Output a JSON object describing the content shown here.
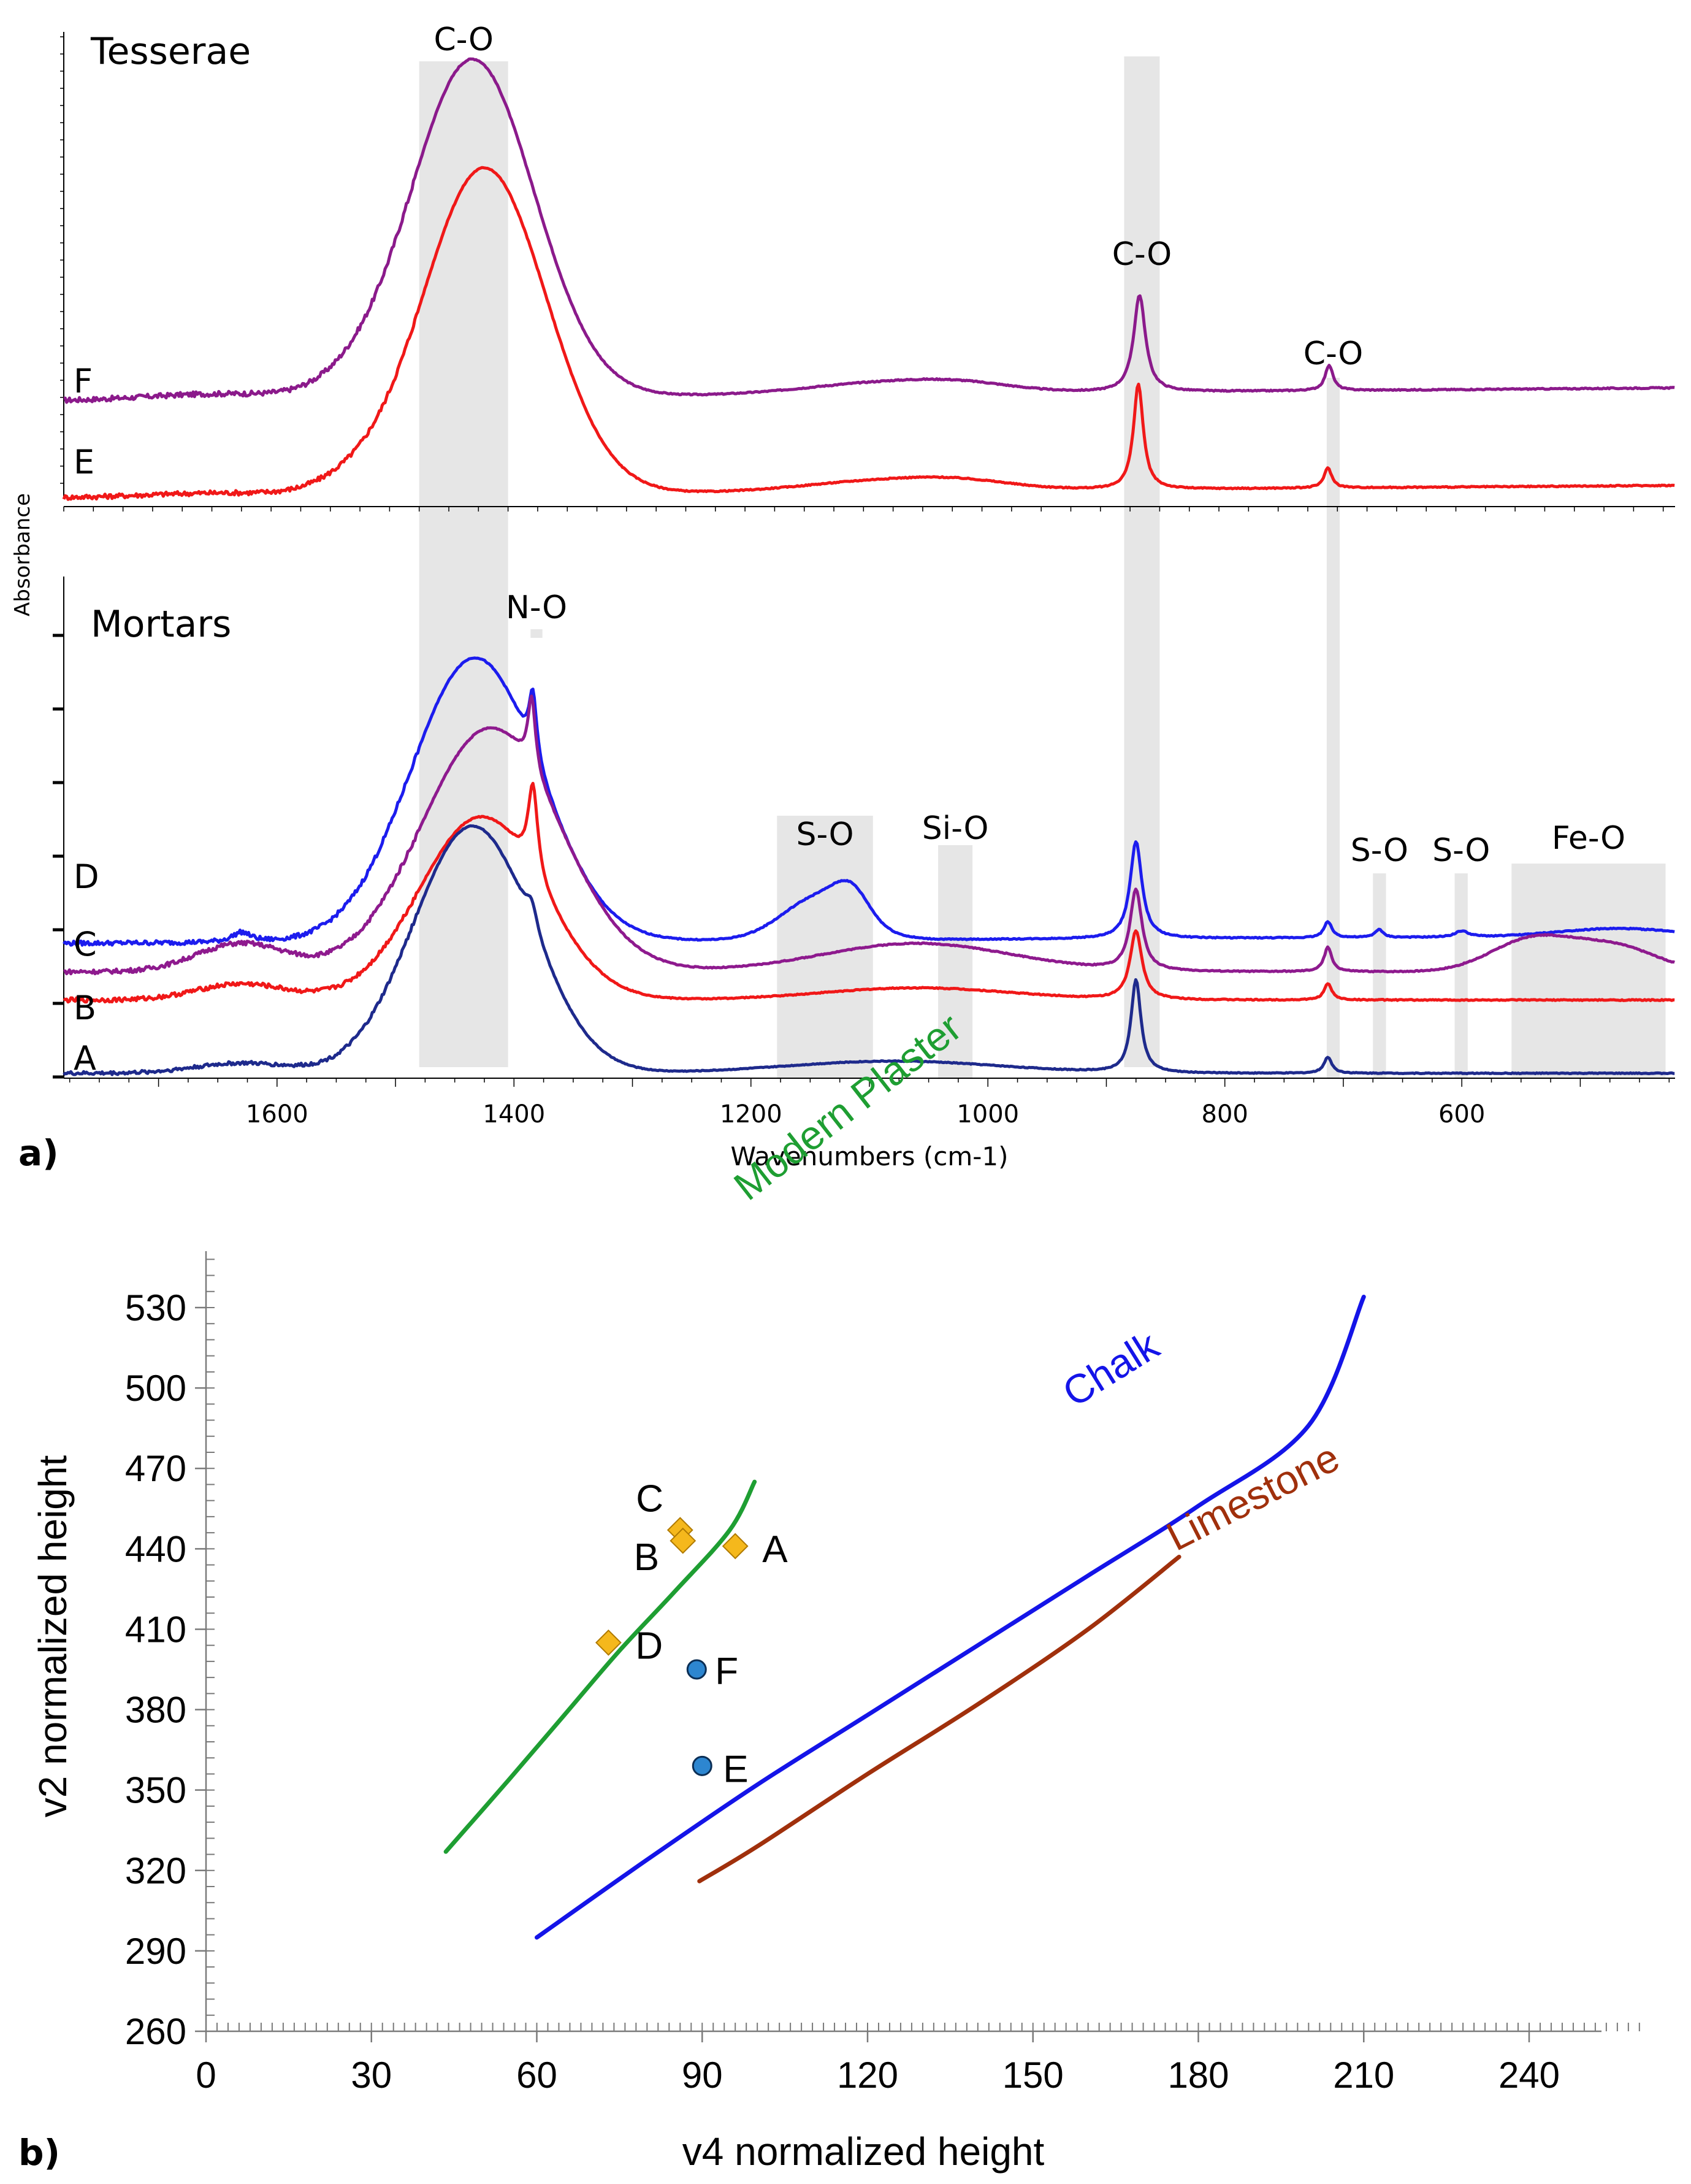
{
  "chart_data": [
    {
      "panel": "a)",
      "type": "line",
      "xlabel": "Wavenumbers (cm-1)",
      "ylabel": "Absorbance",
      "xlim": [
        1780,
        420
      ],
      "x_ticks": [
        1600,
        1400,
        1200,
        1000,
        800,
        600
      ],
      "x_tick_labels": [
        "1600",
        "1400",
        "1200",
        "1000",
        "800",
        "600"
      ],
      "groups": [
        {
          "title": "Tesserae",
          "series_ids": [
            "F",
            "E"
          ]
        },
        {
          "title": "Mortars",
          "series_ids": [
            "D",
            "C",
            "B",
            "A"
          ]
        }
      ],
      "bands": [
        {
          "label": "C-O",
          "from": 1480,
          "to": 1405
        },
        {
          "label": "N-O",
          "from": 1386,
          "to": 1376
        },
        {
          "label": "C-O",
          "from": 885,
          "to": 855
        },
        {
          "label": "C-O",
          "from": 714,
          "to": 703
        },
        {
          "label": "S-O",
          "from": 1178,
          "to": 1097
        },
        {
          "label": "Si-O",
          "from": 1042,
          "to": 1013
        },
        {
          "label": "S-O",
          "from": 675,
          "to": 664
        },
        {
          "label": "S-O",
          "from": 606,
          "to": 595
        },
        {
          "label": "Fe-O",
          "from": 558,
          "to": 428
        }
      ],
      "series": [
        {
          "id": "F",
          "name": "F",
          "color": "#8B1A8B",
          "baseline": 0.03,
          "noise": 0.006,
          "slope": -0.02,
          "peaks": [
            [
              1435,
              52,
              0.89
            ],
            [
              1540,
              30,
              0.02
            ],
            [
              1650,
              60,
              0.015
            ],
            [
              1080,
              70,
              0.032
            ],
            [
              1020,
              40,
              0.012
            ],
            [
              872,
              6,
              0.255
            ],
            [
              712,
              4,
              0.067
            ]
          ]
        },
        {
          "id": "E",
          "name": "E",
          "color": "#F01818",
          "baseline": 0.0,
          "noise": 0.006,
          "slope": -0.02,
          "peaks": [
            [
              1425,
              52,
              0.9
            ],
            [
              1540,
              30,
              0.025
            ],
            [
              1650,
              60,
              0.01
            ],
            [
              1080,
              70,
              0.032
            ],
            [
              1020,
              40,
              0.012
            ],
            [
              873,
              5,
              0.29
            ],
            [
              713,
              4,
              0.055
            ]
          ]
        },
        {
          "id": "D",
          "name": "D",
          "color": "#1C1CEE",
          "baseline": 0.24,
          "noise": 0.005,
          "slope": -0.01,
          "peaks": [
            [
              1433,
              54,
              0.7
            ],
            [
              1384,
              4,
              0.16
            ],
            [
              1630,
              10,
              0.025
            ],
            [
              1140,
              32,
              0.11
            ],
            [
              1115,
              14,
              0.06
            ],
            [
              875,
              6,
              0.24
            ],
            [
              713,
              4,
              0.04
            ],
            [
              670,
              4,
              0.02
            ],
            [
              600,
              7,
              0.015
            ],
            [
              470,
              50,
              0.02
            ]
          ]
        },
        {
          "id": "C",
          "name": "C",
          "color": "#8E1A8E",
          "baseline": 0.16,
          "noise": 0.005,
          "slope": 0.0,
          "peaks": [
            [
              1420,
              58,
              0.6
            ],
            [
              1385,
              4,
              0.18
            ],
            [
              1630,
              38,
              0.07
            ],
            [
              1060,
              80,
              0.07
            ],
            [
              875,
              6,
              0.2
            ],
            [
              713,
              4,
              0.06
            ],
            [
              540,
              35,
              0.08
            ],
            [
              470,
              35,
              0.06
            ]
          ]
        },
        {
          "id": "B",
          "name": "B",
          "color": "#F01818",
          "baseline": 0.09,
          "noise": 0.005,
          "slope": 0.0,
          "peaks": [
            [
              1428,
              52,
              0.45
            ],
            [
              1384,
              5,
              0.22
            ],
            [
              1630,
              38,
              0.04
            ],
            [
              1060,
              80,
              0.03
            ],
            [
              875,
              6,
              0.17
            ],
            [
              713,
              4,
              0.04
            ]
          ]
        },
        {
          "id": "A",
          "name": "A",
          "color": "#1E2A8C",
          "baseline": 0.0,
          "noise": 0.004,
          "slope": 0.0,
          "peaks": [
            [
              1435,
              50,
              0.61
            ],
            [
              1385,
              6,
              0.06
            ],
            [
              1630,
              40,
              0.025
            ],
            [
              1080,
              90,
              0.03
            ],
            [
              875,
              5,
              0.23
            ],
            [
              713,
              4,
              0.04
            ]
          ]
        }
      ]
    },
    {
      "panel": "b)",
      "type": "scatter",
      "xlabel": "v4 normalized height",
      "ylabel": "v2 normalized height",
      "xlim": [
        0,
        260
      ],
      "ylim": [
        260,
        550
      ],
      "x_ticks": [
        0,
        30,
        60,
        90,
        120,
        150,
        180,
        210,
        240
      ],
      "y_ticks": [
        260,
        290,
        320,
        350,
        380,
        410,
        440,
        470,
        500,
        530
      ],
      "curves": [
        {
          "name": "Modern Plaster",
          "color": "#1E9E32",
          "x": [
            43.5,
            55,
            65,
            75,
            85,
            95,
            99.5
          ],
          "y": [
            327,
            354,
            378,
            402,
            424,
            447,
            465
          ]
        },
        {
          "name": "Chalk",
          "color": "#1414E8",
          "x": [
            60,
            80,
            100,
            120,
            140,
            160,
            180,
            200,
            210
          ],
          "y": [
            295,
            324,
            352,
            378,
            404,
            430,
            456,
            486,
            534
          ]
        },
        {
          "name": "Limestone",
          "color": "#A0300C",
          "x": [
            89.5,
            100,
            120,
            140,
            160,
            176.5
          ],
          "y": [
            316,
            329,
            356,
            382,
            410,
            437
          ]
        }
      ],
      "points": [
        {
          "label": "C",
          "shape": "diamond",
          "color": "#F5B81C",
          "x": 86,
          "y": 447
        },
        {
          "label": "B",
          "shape": "diamond",
          "color": "#F5B81C",
          "x": 86.5,
          "y": 443
        },
        {
          "label": "A",
          "shape": "diamond",
          "color": "#F5B81C",
          "x": 96,
          "y": 441
        },
        {
          "label": "D",
          "shape": "diamond",
          "color": "#F5B81C",
          "x": 73,
          "y": 405
        },
        {
          "label": "F",
          "shape": "circle",
          "color": "#2D86D0",
          "x": 89,
          "y": 395
        },
        {
          "label": "E",
          "shape": "circle",
          "color": "#2D86D0",
          "x": 90,
          "y": 359
        }
      ]
    }
  ]
}
